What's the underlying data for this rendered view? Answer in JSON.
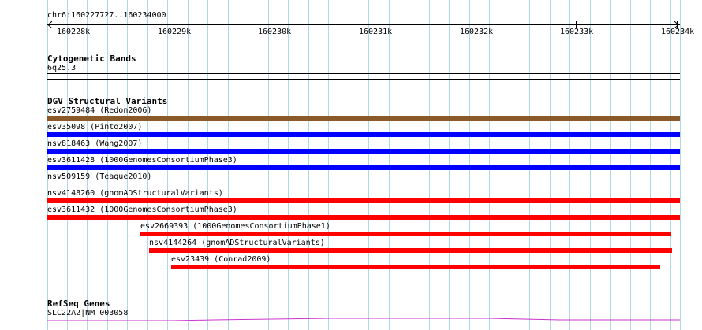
{
  "ruler": {
    "location": "chr6:160227727..160234000",
    "ticks": [
      "160228k",
      "160229k",
      "160230k",
      "160231k",
      "160232k",
      "160233k",
      "160234k"
    ]
  },
  "cytoband": {
    "title": "Cytogenetic Bands",
    "band": "6q25.3"
  },
  "dgv": {
    "title": "DGV Structural Variants",
    "variants": [
      {
        "label": "esv2759484 (Redon2006)",
        "color": "#8b5a2b"
      },
      {
        "label": "esv35098 (Pinto2007)",
        "color": "#0000ff"
      },
      {
        "label": "nsv818463 (Wang2007)",
        "color": "#0000ff"
      },
      {
        "label": "esv3611428 (1000GenomesConsortiumPhase3)",
        "color": "#0000ff"
      },
      {
        "label": "nsv509159 (Teague2010)",
        "color": "#0000ff"
      },
      {
        "label": "nsv4148260 (gnomADStructuralVariants)",
        "color": "#ff0000"
      },
      {
        "label": "esv3611432 (1000GenomesConsortiumPhase3)",
        "color": "#ff0000"
      },
      {
        "label": "esv2669393 (1000GenomesConsortiumPhase1)",
        "color": "#ff0000"
      },
      {
        "label": "nsv4144264 (gnomADStructuralVariants)",
        "color": "#ff0000"
      },
      {
        "label": "esv23439 (Conrad2009)",
        "color": "#ff0000"
      }
    ]
  },
  "refseq": {
    "title": "RefSeq Genes",
    "gene": "SLC22A2|NM_003058",
    "color": "#cc33cc"
  }
}
